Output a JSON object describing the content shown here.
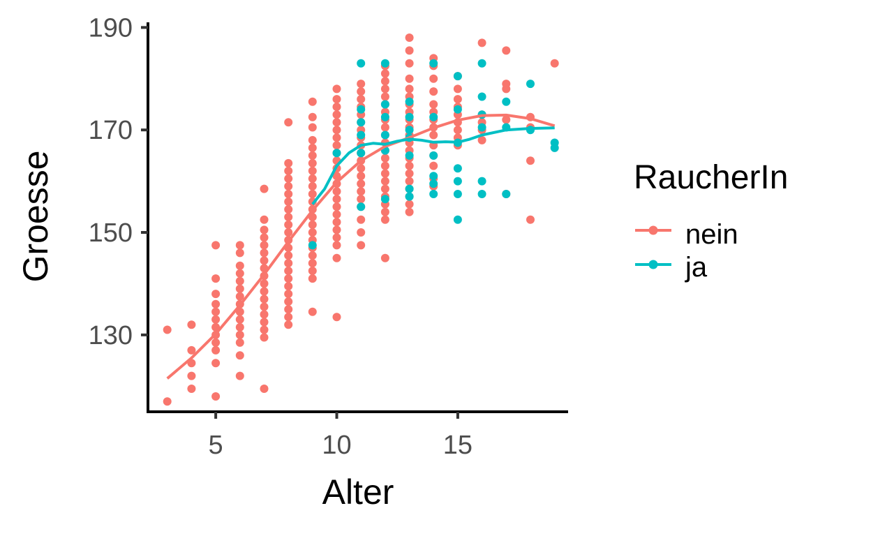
{
  "chart_data": {
    "type": "scatter",
    "xlabel": "Alter",
    "ylabel": "Groesse",
    "xlim": [
      2.2,
      19.5
    ],
    "ylim": [
      115,
      191
    ],
    "x_ticks": [
      5,
      10,
      15
    ],
    "y_ticks": [
      130,
      150,
      170,
      190
    ],
    "grid": false,
    "legend": {
      "title": "RaucherIn",
      "placement": "right",
      "entries": [
        "nein",
        "ja"
      ]
    },
    "series": [
      {
        "name": "nein",
        "color": "#F8766D",
        "points": [
          [
            3,
            117
          ],
          [
            3,
            131
          ],
          [
            4,
            119.5
          ],
          [
            4,
            122
          ],
          [
            4,
            124.5
          ],
          [
            4,
            127
          ],
          [
            4,
            132
          ],
          [
            5,
            118
          ],
          [
            5,
            124.5
          ],
          [
            5,
            127
          ],
          [
            5,
            128.5
          ],
          [
            5,
            130
          ],
          [
            5,
            131.5
          ],
          [
            5,
            133
          ],
          [
            5,
            134.5
          ],
          [
            5,
            136
          ],
          [
            5,
            138
          ],
          [
            5,
            141
          ],
          [
            5,
            147.5
          ],
          [
            6,
            122
          ],
          [
            6,
            126
          ],
          [
            6,
            128.5
          ],
          [
            6,
            130
          ],
          [
            6,
            131.5
          ],
          [
            6,
            133
          ],
          [
            6,
            134.5
          ],
          [
            6,
            136
          ],
          [
            6,
            137.5
          ],
          [
            6,
            139
          ],
          [
            6,
            140.5
          ],
          [
            6,
            142
          ],
          [
            6,
            143.5
          ],
          [
            6,
            146
          ],
          [
            6,
            147.5
          ],
          [
            7,
            119.5
          ],
          [
            7,
            129.5
          ],
          [
            7,
            131
          ],
          [
            7,
            132.5
          ],
          [
            7,
            134
          ],
          [
            7,
            135.5
          ],
          [
            7,
            137
          ],
          [
            7,
            138.5
          ],
          [
            7,
            140
          ],
          [
            7,
            141.5
          ],
          [
            7,
            143
          ],
          [
            7,
            144.5
          ],
          [
            7,
            146
          ],
          [
            7,
            147.5
          ],
          [
            7,
            149
          ],
          [
            7,
            150.5
          ],
          [
            7,
            152.5
          ],
          [
            7,
            158.5
          ],
          [
            8,
            132
          ],
          [
            8,
            133.5
          ],
          [
            8,
            135
          ],
          [
            8,
            136.5
          ],
          [
            8,
            138
          ],
          [
            8,
            139.5
          ],
          [
            8,
            141
          ],
          [
            8,
            142.5
          ],
          [
            8,
            144
          ],
          [
            8,
            145.5
          ],
          [
            8,
            147
          ],
          [
            8,
            148.5
          ],
          [
            8,
            150
          ],
          [
            8,
            151.5
          ],
          [
            8,
            153
          ],
          [
            8,
            154.5
          ],
          [
            8,
            156
          ],
          [
            8,
            157.5
          ],
          [
            8,
            159
          ],
          [
            8,
            160.5
          ],
          [
            8,
            162
          ],
          [
            8,
            163.5
          ],
          [
            8,
            171.5
          ],
          [
            9,
            134.5
          ],
          [
            9,
            141
          ],
          [
            9,
            142.5
          ],
          [
            9,
            144
          ],
          [
            9,
            145.5
          ],
          [
            9,
            147
          ],
          [
            9,
            148.5
          ],
          [
            9,
            150
          ],
          [
            9,
            151.5
          ],
          [
            9,
            153
          ],
          [
            9,
            154.5
          ],
          [
            9,
            156
          ],
          [
            9,
            157.5
          ],
          [
            9,
            159
          ],
          [
            9,
            160.5
          ],
          [
            9,
            162
          ],
          [
            9,
            163.5
          ],
          [
            9,
            165
          ],
          [
            9,
            166.5
          ],
          [
            9,
            168
          ],
          [
            9,
            170.5
          ],
          [
            9,
            172.5
          ],
          [
            9,
            175.5
          ],
          [
            10,
            133.5
          ],
          [
            10,
            145
          ],
          [
            10,
            147.5
          ],
          [
            10,
            149
          ],
          [
            10,
            150.5
          ],
          [
            10,
            152
          ],
          [
            10,
            153.5
          ],
          [
            10,
            155
          ],
          [
            10,
            156.5
          ],
          [
            10,
            158
          ],
          [
            10,
            159.5
          ],
          [
            10,
            161
          ],
          [
            10,
            162.5
          ],
          [
            10,
            164
          ],
          [
            10,
            165.5
          ],
          [
            10,
            167
          ],
          [
            10,
            168.5
          ],
          [
            10,
            170
          ],
          [
            10,
            171.5
          ],
          [
            10,
            173
          ],
          [
            10,
            174.5
          ],
          [
            10,
            176
          ],
          [
            10,
            178
          ],
          [
            11,
            147.5
          ],
          [
            11,
            150
          ],
          [
            11,
            152.5
          ],
          [
            11,
            155
          ],
          [
            11,
            156.5
          ],
          [
            11,
            158
          ],
          [
            11,
            159.5
          ],
          [
            11,
            161
          ],
          [
            11,
            162.5
          ],
          [
            11,
            164
          ],
          [
            11,
            165.5
          ],
          [
            11,
            167
          ],
          [
            11,
            168.5
          ],
          [
            11,
            170
          ],
          [
            11,
            171.5
          ],
          [
            11,
            173
          ],
          [
            11,
            174.5
          ],
          [
            11,
            176
          ],
          [
            11,
            177.5
          ],
          [
            11,
            179
          ],
          [
            12,
            145
          ],
          [
            12,
            152.5
          ],
          [
            12,
            154
          ],
          [
            12,
            155.5
          ],
          [
            12,
            157
          ],
          [
            12,
            158.5
          ],
          [
            12,
            160
          ],
          [
            12,
            161.5
          ],
          [
            12,
            163
          ],
          [
            12,
            164.5
          ],
          [
            12,
            166
          ],
          [
            12,
            167.5
          ],
          [
            12,
            169
          ],
          [
            12,
            170.5
          ],
          [
            12,
            172
          ],
          [
            12,
            173.5
          ],
          [
            12,
            175
          ],
          [
            12,
            176.5
          ],
          [
            12,
            178
          ],
          [
            12,
            179.5
          ],
          [
            12,
            181
          ],
          [
            12,
            182.5
          ],
          [
            13,
            154
          ],
          [
            13,
            155.5
          ],
          [
            13,
            157
          ],
          [
            13,
            158.5
          ],
          [
            13,
            160
          ],
          [
            13,
            161.5
          ],
          [
            13,
            163
          ],
          [
            13,
            164.5
          ],
          [
            13,
            166
          ],
          [
            13,
            167.5
          ],
          [
            13,
            169
          ],
          [
            13,
            170.5
          ],
          [
            13,
            172
          ],
          [
            13,
            173.5
          ],
          [
            13,
            175
          ],
          [
            13,
            176.5
          ],
          [
            13,
            178
          ],
          [
            13,
            180
          ],
          [
            13,
            183
          ],
          [
            13,
            185.5
          ],
          [
            13,
            188
          ],
          [
            14,
            159
          ],
          [
            14,
            160.5
          ],
          [
            14,
            163
          ],
          [
            14,
            165
          ],
          [
            14,
            167
          ],
          [
            14,
            169
          ],
          [
            14,
            170.5
          ],
          [
            14,
            172
          ],
          [
            14,
            173.5
          ],
          [
            14,
            175
          ],
          [
            14,
            177.5
          ],
          [
            14,
            180
          ],
          [
            14,
            182.5
          ],
          [
            14,
            184
          ],
          [
            15,
            167
          ],
          [
            15,
            168.5
          ],
          [
            15,
            170
          ],
          [
            15,
            171.5
          ],
          [
            15,
            173
          ],
          [
            15,
            174.5
          ],
          [
            15,
            176
          ],
          [
            15,
            178
          ],
          [
            15,
            180.5
          ],
          [
            16,
            168
          ],
          [
            16,
            170
          ],
          [
            16,
            171.5
          ],
          [
            16,
            173
          ],
          [
            16,
            187
          ],
          [
            17,
            157.5
          ],
          [
            17,
            172
          ],
          [
            17,
            178
          ],
          [
            17,
            179
          ],
          [
            17,
            185.5
          ],
          [
            18,
            152.5
          ],
          [
            18,
            164
          ],
          [
            18,
            170.5
          ],
          [
            18,
            172.5
          ],
          [
            19,
            183
          ]
        ],
        "smooth": [
          [
            3,
            121.5
          ],
          [
            4,
            125.5
          ],
          [
            5,
            130.2
          ],
          [
            6,
            135.8
          ],
          [
            7,
            141.8
          ],
          [
            8,
            148.2
          ],
          [
            9,
            154.3
          ],
          [
            10,
            159.8
          ],
          [
            11,
            164.0
          ],
          [
            12,
            166.8
          ],
          [
            13,
            168.5
          ],
          [
            14,
            170.4
          ],
          [
            15,
            171.9
          ],
          [
            16,
            172.8
          ],
          [
            17,
            172.9
          ],
          [
            18,
            172.2
          ],
          [
            19,
            170.8
          ]
        ]
      },
      {
        "name": "ja",
        "color": "#00BFC4",
        "points": [
          [
            9,
            147.5
          ],
          [
            10,
            165.5
          ],
          [
            11,
            155
          ],
          [
            11,
            165.5
          ],
          [
            11,
            169
          ],
          [
            11,
            171.5
          ],
          [
            11,
            174
          ],
          [
            11,
            183
          ],
          [
            12,
            156.5
          ],
          [
            12,
            166
          ],
          [
            12,
            169
          ],
          [
            12,
            172.5
          ],
          [
            12,
            175
          ],
          [
            12,
            183
          ],
          [
            13,
            157
          ],
          [
            13,
            158.5
          ],
          [
            13,
            165
          ],
          [
            13,
            168.5
          ],
          [
            13,
            170
          ],
          [
            13,
            172.5
          ],
          [
            13,
            175.5
          ],
          [
            14,
            157.5
          ],
          [
            14,
            159.5
          ],
          [
            14,
            161
          ],
          [
            14,
            165
          ],
          [
            14,
            172.5
          ],
          [
            14,
            183
          ],
          [
            15,
            152.5
          ],
          [
            15,
            157.5
          ],
          [
            15,
            160
          ],
          [
            15,
            162.5
          ],
          [
            15,
            167.5
          ],
          [
            15,
            174
          ],
          [
            15,
            180.5
          ],
          [
            16,
            157.5
          ],
          [
            16,
            160
          ],
          [
            16,
            170.5
          ],
          [
            16,
            173
          ],
          [
            16,
            176.5
          ],
          [
            16,
            183
          ],
          [
            17,
            157.5
          ],
          [
            17,
            170.5
          ],
          [
            17,
            175.5
          ],
          [
            18,
            170
          ],
          [
            18,
            179
          ],
          [
            19,
            166.5
          ],
          [
            19,
            167.5
          ]
        ],
        "smooth": [
          [
            9,
            155.5
          ],
          [
            9.5,
            158.5
          ],
          [
            10,
            163
          ],
          [
            10.5,
            165.5
          ],
          [
            11,
            167.0
          ],
          [
            11.5,
            167.4
          ],
          [
            12,
            167.2
          ],
          [
            12.5,
            167.8
          ],
          [
            13,
            168.2
          ],
          [
            13.5,
            168.0
          ],
          [
            14,
            167.6
          ],
          [
            14.5,
            167.7
          ],
          [
            15,
            167.6
          ],
          [
            15.5,
            168.2
          ],
          [
            16,
            169.0
          ],
          [
            17,
            170.0
          ],
          [
            18,
            170.3
          ],
          [
            19,
            170.4
          ]
        ]
      }
    ]
  }
}
